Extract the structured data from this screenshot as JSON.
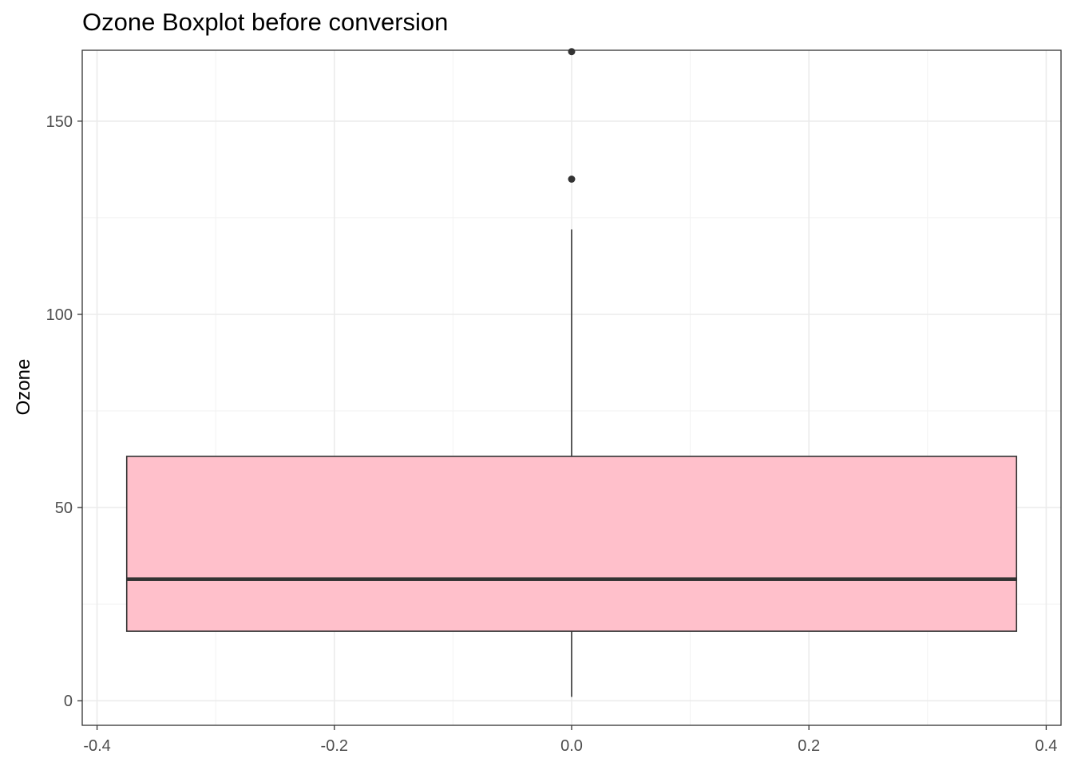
{
  "chart_data": {
    "type": "boxplot",
    "title": "Ozone Boxplot before conversion",
    "xlabel": "",
    "ylabel": "Ozone",
    "xlim": [
      -0.4125,
      0.4125
    ],
    "ylim": [
      -6.35,
      168.35
    ],
    "x_ticks": [
      -0.4,
      -0.2,
      0.0,
      0.2,
      0.4
    ],
    "x_tick_labels": [
      "-0.4",
      "-0.2",
      "0.0",
      "0.2",
      "0.4"
    ],
    "y_ticks": [
      0,
      50,
      100,
      150
    ],
    "y_tick_labels": [
      "0",
      "50",
      "100",
      "150"
    ],
    "grid": true,
    "box": {
      "x_center": 0.0,
      "x_left": -0.375,
      "x_right": 0.375,
      "q1": 18,
      "median": 31.5,
      "q3": 63.25,
      "whisker_low": 1,
      "whisker_high": 122,
      "outliers": [
        135,
        168
      ]
    },
    "colors": {
      "box_fill": "#ffc0cb",
      "box_outline": "#333333",
      "median_line": "#333333",
      "grid_major": "#ebebeb",
      "grid_minor": "#f2f2f2",
      "panel_border": "#333333"
    }
  }
}
